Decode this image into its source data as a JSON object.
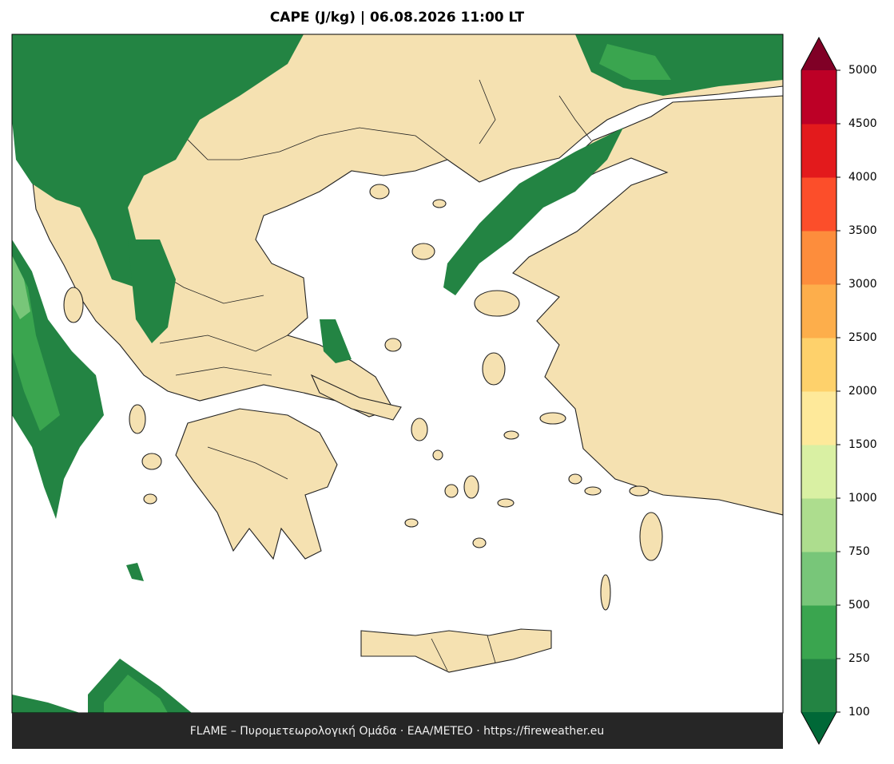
{
  "title": "CAPE (J/kg)  |  06.08.2026 11:00 LT",
  "footer": "FLAME – Πυρομετεωρολογική Ομάδα · ΕΑΑ/METEO · https://fireweather.eu",
  "colorbar": {
    "ticks": [
      100,
      250,
      500,
      750,
      1000,
      1500,
      2000,
      2500,
      3000,
      3500,
      4000,
      4500,
      5000
    ],
    "colors": [
      "#238443",
      "#3aa54f",
      "#78c679",
      "#addd8e",
      "#d9f0a3",
      "#fee99a",
      "#fed16b",
      "#fdae4b",
      "#fd8d3c",
      "#fc4e2a",
      "#e31a1c",
      "#bd0026"
    ],
    "under_color": "#006837",
    "over_color": "#800026"
  }
}
